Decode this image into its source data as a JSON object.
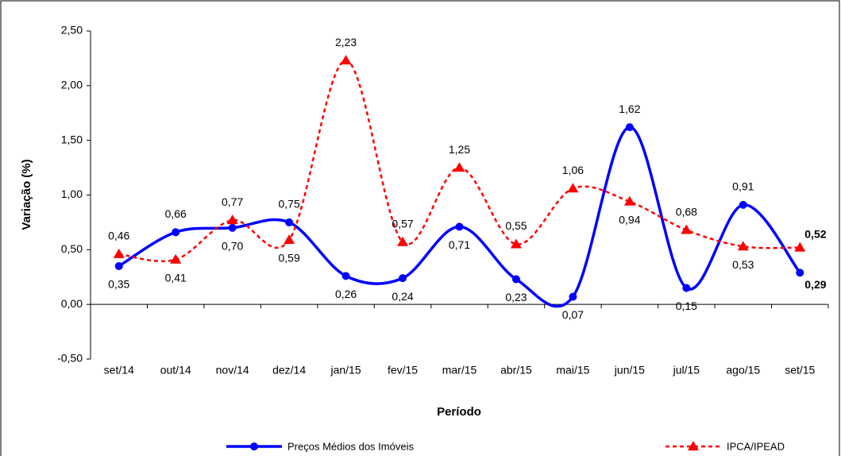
{
  "chart_data": {
    "type": "line",
    "y_label": "Variação (%)",
    "x_label": "Período",
    "categories": [
      "set/14",
      "out/14",
      "nov/14",
      "dez/14",
      "jan/15",
      "fev/15",
      "mar/15",
      "abr/15",
      "mai/15",
      "jun/15",
      "jul/15",
      "ago/15",
      "set/15"
    ],
    "series": [
      {
        "name": "Preços Médios dos Imóveis",
        "color": "#0000ff",
        "marker": "circle",
        "dash": false,
        "values": [
          0.35,
          0.66,
          0.7,
          0.75,
          0.26,
          0.24,
          0.71,
          0.23,
          0.07,
          1.62,
          0.15,
          0.91,
          0.29
        ],
        "value_labels": [
          "0,35",
          "0,66",
          "0,70",
          "0,75",
          "0,26",
          "0,24",
          "0,71",
          "0,23",
          "0,07",
          "1,62",
          "0,15",
          "0,91",
          "0,29"
        ]
      },
      {
        "name": "IPCA/IPEAD",
        "color": "#ff0000",
        "marker": "triangle",
        "dash": true,
        "values": [
          0.46,
          0.41,
          0.77,
          0.59,
          2.23,
          0.57,
          1.25,
          0.55,
          1.06,
          0.94,
          0.68,
          0.53,
          0.52
        ],
        "value_labels": [
          "0,46",
          "0,41",
          "0,77",
          "0,59",
          "2,23",
          "0,57",
          "1,25",
          "0,55",
          "1,06",
          "0,94",
          "0,68",
          "0,53",
          "0,52"
        ]
      }
    ],
    "ylim": [
      -0.5,
      2.5
    ],
    "yticks": [
      {
        "value": -0.5,
        "label": "-0,50"
      },
      {
        "value": 0,
        "label": "0,00"
      },
      {
        "value": 0.5,
        "label": "0,50"
      },
      {
        "value": 1,
        "label": "1,00"
      },
      {
        "value": 1.5,
        "label": "1,50"
      },
      {
        "value": 2,
        "label": "2,00"
      },
      {
        "value": 2.5,
        "label": "2,50"
      }
    ],
    "smooth": true
  }
}
